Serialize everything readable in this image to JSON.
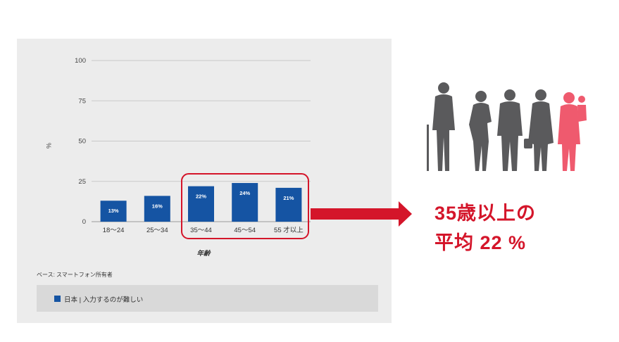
{
  "chart_data": {
    "type": "bar",
    "categories": [
      "18〜24",
      "25〜34",
      "35〜44",
      "45〜54",
      "55 才以上"
    ],
    "values": [
      13,
      16,
      22,
      24,
      21
    ],
    "value_labels": [
      "13%",
      "16%",
      "22%",
      "24%",
      "21%"
    ],
    "yticks": [
      "100",
      "75",
      "50",
      "25",
      "0"
    ],
    "ylim": [
      0,
      100
    ],
    "ylabel": "%",
    "xlabel": "年齢",
    "grid": true,
    "series": [
      {
        "name": "日本 | 入力するのが難しい",
        "color": "#1554a3"
      }
    ],
    "legend_position": "bottom"
  },
  "note": "ベース: スマートフォン所有者",
  "legend": {
    "label": "日本 | 入力するのが難しい"
  },
  "callout": {
    "line1": "35歳以上の",
    "line2": "平均 22 %"
  },
  "colors": {
    "bar": "#1554a3",
    "accent": "#d4152a",
    "silhouette": "#5a5a5c",
    "highlight_figure": "#ef5a6e"
  },
  "icons": [
    "elderly-man-icon",
    "woman-phone-icon",
    "man-suit-icon",
    "woman-bag-icon",
    "mother-child-icon"
  ]
}
